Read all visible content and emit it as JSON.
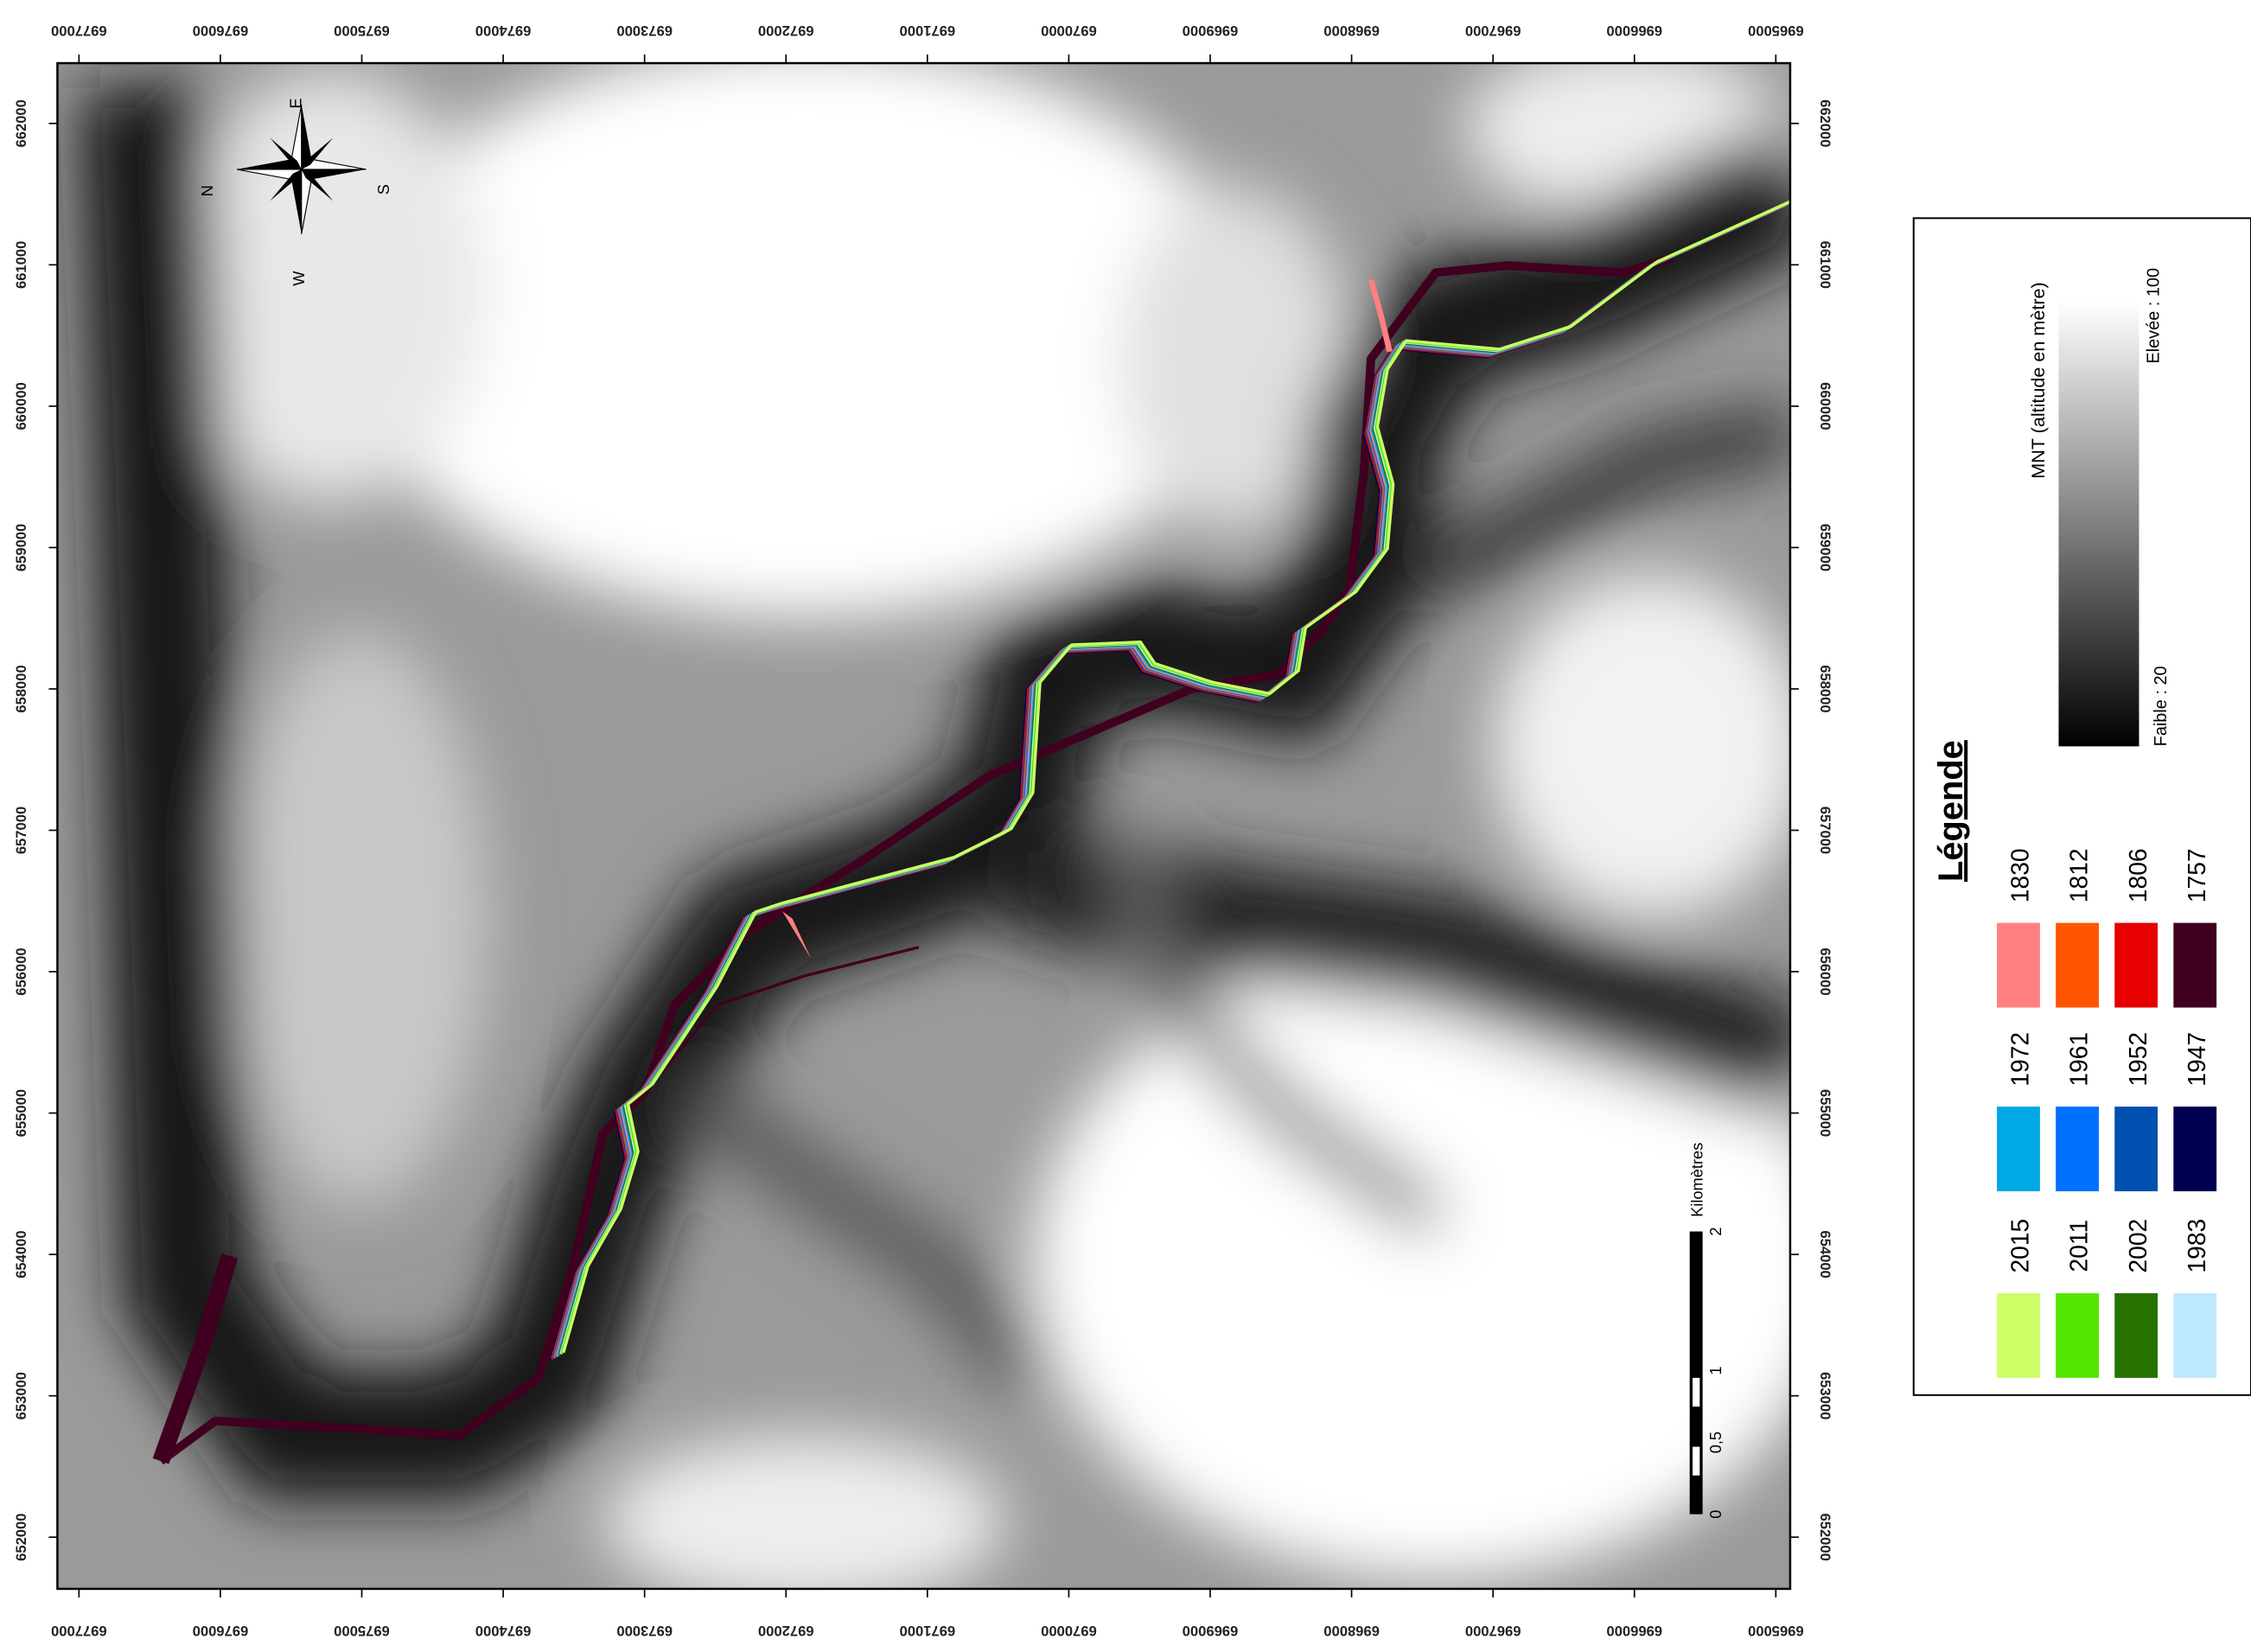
{
  "frame": {
    "x_labels": [
      "6977000",
      "6976000",
      "6975000",
      "6974000",
      "6973000",
      "6972000",
      "6971000",
      "6970000",
      "6969000",
      "6968000",
      "6967000",
      "6966000",
      "6965000"
    ],
    "y_labels": [
      "662000",
      "661000",
      "660000",
      "659000",
      "658000",
      "657000",
      "656000",
      "655000",
      "654000",
      "653000",
      "652000"
    ]
  },
  "compass": {
    "n": "N",
    "e": "E",
    "s": "S",
    "w": "W"
  },
  "scale_bar": {
    "labels": [
      "0",
      "0,5",
      "1",
      "2"
    ],
    "unit": "Kilomètres"
  },
  "legend": {
    "title": "Légende",
    "items": [
      {
        "label": "1830",
        "color": "#ff8080"
      },
      {
        "label": "1812",
        "color": "#ff5500"
      },
      {
        "label": "1806",
        "color": "#e60000"
      },
      {
        "label": "1757",
        "color": "#400020"
      },
      {
        "label": "1972",
        "color": "#00a8e6"
      },
      {
        "label": "1961",
        "color": "#0070ff"
      },
      {
        "label": "1952",
        "color": "#0050b0"
      },
      {
        "label": "1947",
        "color": "#000050"
      },
      {
        "label": "2015",
        "color": "#ccff66"
      },
      {
        "label": "2011",
        "color": "#55e600"
      },
      {
        "label": "2002",
        "color": "#267300"
      },
      {
        "label": "1983",
        "color": "#bee8ff"
      }
    ],
    "dem": {
      "title": "MNT (altitude en mètre)",
      "high": "Elevée : 100",
      "low": "Faible : 20"
    }
  }
}
